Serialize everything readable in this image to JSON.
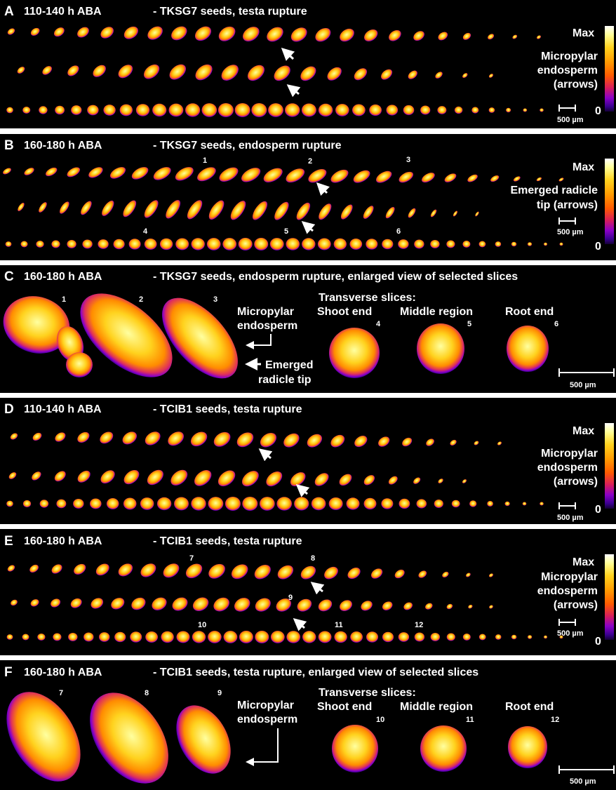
{
  "colors": {
    "background": "#000000",
    "separator": "#ffffff",
    "text": "#ffffff",
    "colormap": [
      "#140036",
      "#3a0090",
      "#8a00c8",
      "#d81e5a",
      "#ff5a00",
      "#ff9a00",
      "#ffd21e",
      "#ffff9a",
      "#ffffff"
    ]
  },
  "panels": [
    {
      "letter": "A",
      "condition": "110-140 h ABA",
      "description": "- TKSG7 seeds, testa rupture",
      "colorbar": {
        "max": "Max",
        "zero": "0"
      },
      "legend": [
        "Micropylar",
        "endosperm",
        "(arrows)"
      ],
      "scalebar": "500 µm",
      "numbers": []
    },
    {
      "letter": "B",
      "condition": "160-180 h ABA",
      "description": "- TKSG7 seeds, endosperm rupture",
      "colorbar": {
        "max": "Max",
        "zero": "0"
      },
      "legend": [
        "Emerged radicle",
        "tip (arrows)"
      ],
      "scalebar": "500 µm",
      "numbers": [
        "1",
        "2",
        "3",
        "4",
        "5",
        "6"
      ]
    },
    {
      "letter": "C",
      "condition": "160-180 h ABA",
      "description": "- TKSG7 seeds, endosperm rupture, enlarged view of selected slices",
      "numbers": [
        "1",
        "2",
        "3",
        "4",
        "5",
        "6"
      ],
      "callouts": {
        "micropylar": [
          "Micropylar",
          "endosperm"
        ],
        "radicle": [
          "Emerged",
          "radicle tip"
        ]
      },
      "transverse": {
        "heading": "Transverse slices:",
        "labels": [
          "Shoot end",
          "Middle region",
          "Root end"
        ]
      },
      "scalebar": "500 µm"
    },
    {
      "letter": "D",
      "condition": "110-140 h ABA",
      "description": "- TCIB1 seeds, testa rupture",
      "colorbar": {
        "max": "Max",
        "zero": "0"
      },
      "legend": [
        "Micropylar",
        "endosperm",
        "(arrows)"
      ],
      "scalebar": "500 µm",
      "numbers": []
    },
    {
      "letter": "E",
      "condition": "160-180 h ABA",
      "description": "- TCIB1 seeds, testa rupture",
      "colorbar": {
        "max": "Max",
        "zero": "0"
      },
      "legend": [
        "Micropylar",
        "endosperm",
        "(arrows)"
      ],
      "scalebar": "500 µm",
      "numbers": [
        "7",
        "8",
        "9",
        "10",
        "11",
        "12"
      ]
    },
    {
      "letter": "F",
      "condition": "160-180 h ABA",
      "description": "- TCIB1 seeds, testa rupture, enlarged view of selected slices",
      "numbers": [
        "7",
        "8",
        "9",
        "10",
        "11",
        "12"
      ],
      "callouts": {
        "micropylar": [
          "Micropylar",
          "endosperm"
        ]
      },
      "transverse": {
        "heading": "Transverse slices:",
        "labels": [
          "Shoot end",
          "Middle region",
          "Root end"
        ]
      },
      "scalebar": "500 µm"
    }
  ]
}
